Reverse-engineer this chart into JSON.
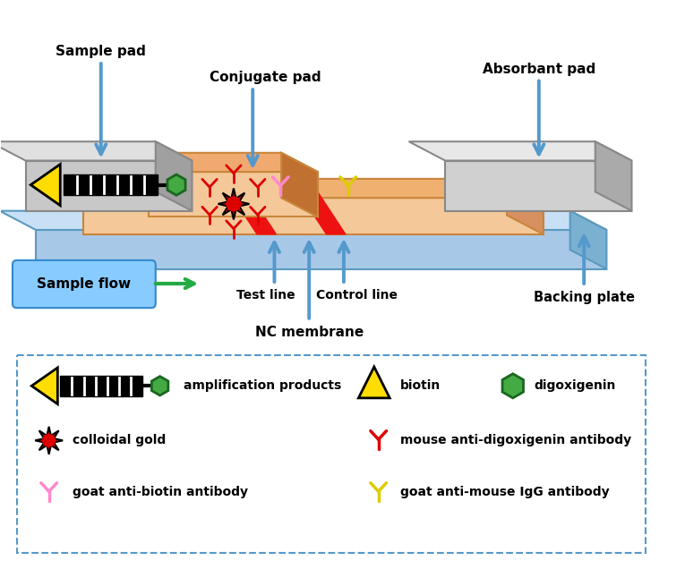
{
  "bg_color": "#ffffff",
  "backing_plate_color": "#a8c8e8",
  "backing_plate_top": "#c8e0f5",
  "backing_plate_side": "#7ab0d0",
  "backing_plate_edge": "#5a9abf",
  "nc_membrane_color": "#f5c89a",
  "nc_membrane_top": "#f0b070",
  "nc_membrane_side": "#d89060",
  "nc_membrane_edge": "#c8853a",
  "sample_pad_color": "#c8c8c8",
  "sample_pad_top": "#e0e0e0",
  "sample_pad_side": "#a0a0a0",
  "sample_pad_edge": "#888888",
  "conjugate_pad_color": "#f5c89a",
  "conjugate_pad_top": "#f0aa70",
  "conjugate_pad_side": "#c07030",
  "absorbant_pad_color": "#d0d0d0",
  "absorbant_pad_top": "#e8e8e8",
  "absorbant_pad_side": "#aaaaaa",
  "absorbant_pad_edge": "#888888",
  "red_line_color": "#ee1111",
  "arrow_color": "#5599cc",
  "green_arrow_color": "#22aa44",
  "sample_flow_bg_top": "#aaddff",
  "sample_flow_bg_bot": "#66bbee",
  "labels": {
    "sample_pad": "Sample pad",
    "conjugate_pad": "Conjugate pad",
    "absorbant_pad": "Absorbant pad",
    "test_line": "Test line",
    "control_line": "Control line",
    "nc_membrane": "NC membrane",
    "backing_plate": "Backing plate",
    "sample_flow": "Sample flow"
  }
}
